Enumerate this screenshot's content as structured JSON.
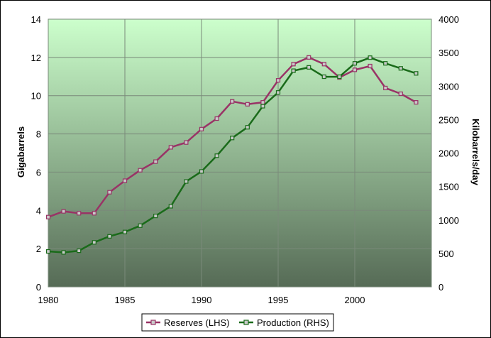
{
  "chart_data": {
    "type": "line",
    "title": "",
    "xlabel": "",
    "ylabel_left": "Gigabarrels",
    "ylabel_right": "Kilobarrels/day",
    "xlim": [
      1980,
      2005
    ],
    "ylim_left": [
      0,
      14
    ],
    "ylim_right": [
      0,
      4000
    ],
    "x_ticks": [
      1980,
      1985,
      1990,
      1995,
      2000
    ],
    "y_ticks_left": [
      0,
      2,
      4,
      6,
      8,
      10,
      12,
      14
    ],
    "y_ticks_right": [
      0,
      500,
      1000,
      1500,
      2000,
      2500,
      3000,
      3500,
      4000
    ],
    "grid": true,
    "legend_position": "bottom-center",
    "series": [
      {
        "name": "Reserves (LHS)",
        "axis": "left",
        "color": "#993366",
        "x": [
          1980,
          1981,
          1982,
          1983,
          1984,
          1985,
          1986,
          1987,
          1988,
          1989,
          1990,
          1991,
          1992,
          1993,
          1994,
          1995,
          1996,
          1997,
          1998,
          1999,
          2000,
          2001,
          2002,
          2003,
          2004
        ],
        "values": [
          3.65,
          3.95,
          3.85,
          3.85,
          4.95,
          5.55,
          6.1,
          6.55,
          7.3,
          7.55,
          8.25,
          8.8,
          9.7,
          9.55,
          9.65,
          10.8,
          11.65,
          12.0,
          11.65,
          10.95,
          11.35,
          11.55,
          10.4,
          10.1,
          9.65
        ]
      },
      {
        "name": "Production (RHS)",
        "axis": "right",
        "color": "#1a6b1a",
        "x": [
          1980,
          1981,
          1982,
          1983,
          1984,
          1985,
          1986,
          1987,
          1988,
          1989,
          1990,
          1991,
          1992,
          1993,
          1994,
          1995,
          1996,
          1997,
          1998,
          1999,
          2000,
          2001,
          2002,
          2003,
          2004
        ],
        "values": [
          530,
          515,
          540,
          665,
          755,
          820,
          915,
          1060,
          1205,
          1575,
          1725,
          1960,
          2225,
          2385,
          2700,
          2905,
          3230,
          3280,
          3140,
          3140,
          3340,
          3425,
          3340,
          3265,
          3190
        ]
      }
    ]
  },
  "colors": {
    "plot_top": "#ccffcc",
    "plot_bottom": "#566b56",
    "grid": "#7a8a7a",
    "marker_fill": "#c9c9c9"
  }
}
